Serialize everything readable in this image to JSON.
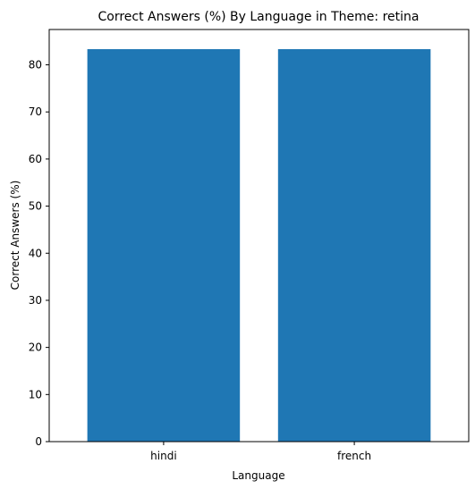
{
  "chart_data": {
    "type": "bar",
    "title": "Correct Answers (%) By Language in Theme: retina",
    "xlabel": "Language",
    "ylabel": "Correct Answers (%)",
    "categories": [
      "hindi",
      "french"
    ],
    "values": [
      83.33,
      83.33
    ],
    "ylim": [
      0,
      87.5
    ],
    "yticks": [
      0,
      10,
      20,
      30,
      40,
      50,
      60,
      70,
      80
    ],
    "bar_color": "#1f77b4",
    "grid": false,
    "legend": "none"
  }
}
